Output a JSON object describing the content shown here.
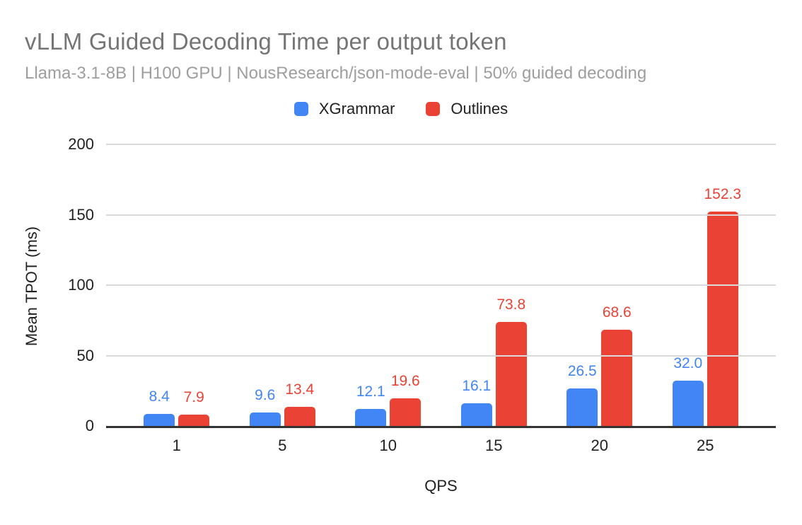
{
  "header": {
    "title": "vLLM Guided Decoding Time per output token",
    "subtitle": "Llama-3.1-8B | H100 GPU | NousResearch/json-mode-eval | 50% guided decoding"
  },
  "chart_data": {
    "type": "bar",
    "title": "vLLM Guided Decoding Time per output token",
    "subtitle": "Llama-3.1-8B | H100 GPU | NousResearch/json-mode-eval | 50% guided decoding",
    "xlabel": "QPS",
    "ylabel": "Mean TPOT (ms)",
    "ylim": [
      0,
      200
    ],
    "yticks": [
      0,
      50,
      100,
      150,
      200
    ],
    "grid": true,
    "legend_position": "top-center",
    "data_labels": true,
    "categories": [
      "1",
      "5",
      "10",
      "15",
      "20",
      "25"
    ],
    "series": [
      {
        "name": "XGrammar",
        "color": "#4285F4",
        "values": [
          8.4,
          9.6,
          12.1,
          16.1,
          26.5,
          32.0
        ]
      },
      {
        "name": "Outlines",
        "color": "#EA4335",
        "values": [
          7.9,
          13.4,
          19.6,
          73.8,
          68.6,
          152.3
        ]
      }
    ]
  },
  "colors": {
    "title_text": "#757575",
    "subtitle_text": "#9E9E9E",
    "axis_text": "#212121",
    "gridline": "#D9D9D9",
    "axis_line": "#333333",
    "series_blue": "#4285F4",
    "series_red": "#EA4335"
  }
}
